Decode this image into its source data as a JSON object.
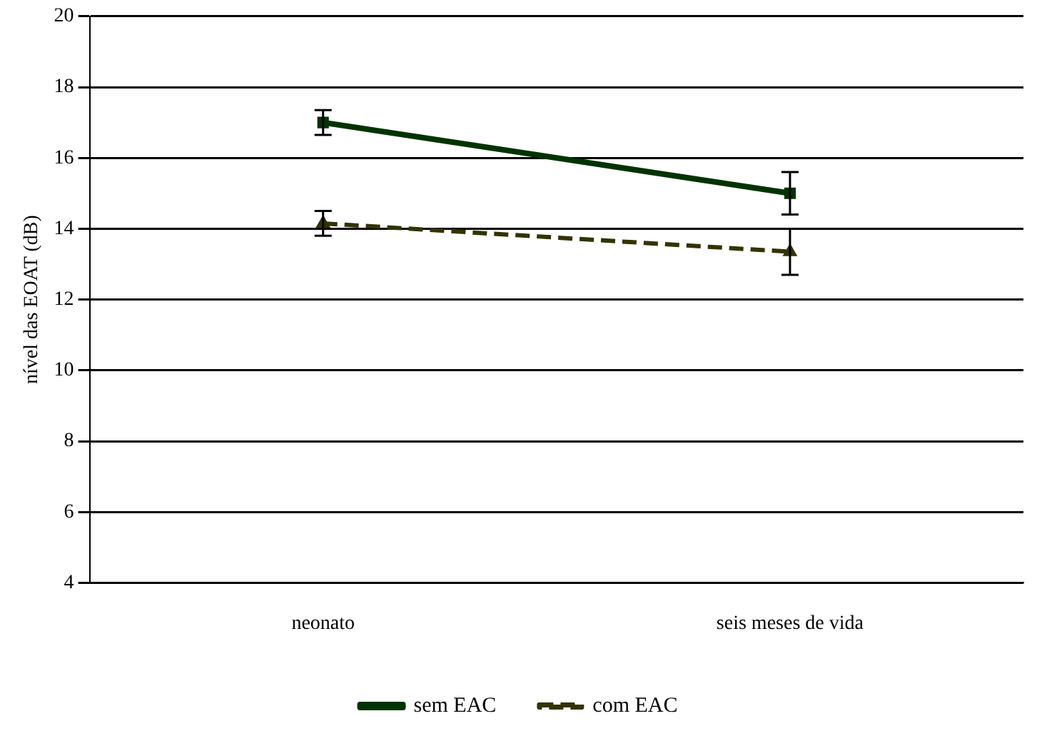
{
  "chart_data": {
    "type": "line",
    "ylabel": "nível das EOAT (dB)",
    "categories": [
      "neonato",
      "seis meses de vida"
    ],
    "series": [
      {
        "name": "sem EAC",
        "color": "#003300",
        "values": [
          17.0,
          15.0
        ],
        "errors": [
          0.35,
          0.6
        ],
        "marker": "square",
        "line_style": "solid"
      },
      {
        "name": "com EAC",
        "color": "#333300",
        "values": [
          14.15,
          13.35
        ],
        "errors": [
          0.35,
          0.65
        ],
        "marker": "triangle",
        "line_style": "dashed"
      }
    ],
    "ylim": [
      4,
      20
    ],
    "yticks": [
      4,
      6,
      8,
      10,
      12,
      14,
      16,
      18,
      20
    ],
    "grid": "y",
    "legend": "bottom"
  }
}
